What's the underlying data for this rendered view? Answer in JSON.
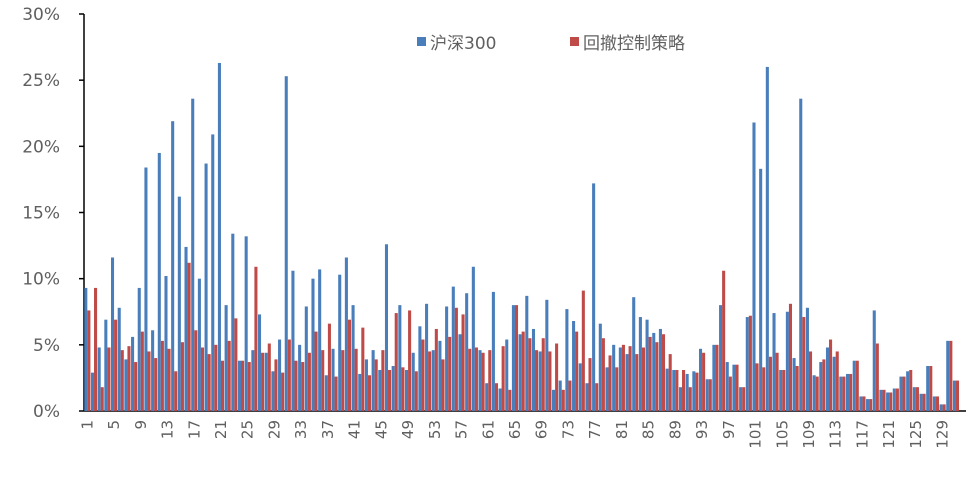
{
  "chart_data": {
    "type": "bar",
    "title": "",
    "xlabel": "",
    "ylabel": "",
    "ylim": [
      0,
      30
    ],
    "y_ticks": [
      "0%",
      "5%",
      "10%",
      "15%",
      "20%",
      "25%",
      "30%"
    ],
    "x_tick_every": 4,
    "legend_position": "top-center",
    "grid": false,
    "categories": [
      1,
      2,
      3,
      4,
      5,
      6,
      7,
      8,
      9,
      10,
      11,
      12,
      13,
      14,
      15,
      16,
      17,
      18,
      19,
      20,
      21,
      22,
      23,
      24,
      25,
      26,
      27,
      28,
      29,
      30,
      31,
      32,
      33,
      34,
      35,
      36,
      37,
      38,
      39,
      40,
      41,
      42,
      43,
      44,
      45,
      46,
      47,
      48,
      49,
      50,
      51,
      52,
      53,
      54,
      55,
      56,
      57,
      58,
      59,
      60,
      61,
      62,
      63,
      64,
      65,
      66,
      67,
      68,
      69,
      70,
      71,
      72,
      73,
      74,
      75,
      76,
      77,
      78,
      79,
      80,
      81,
      82,
      83,
      84,
      85,
      86,
      87,
      88,
      89,
      90,
      91,
      92,
      93,
      94,
      95,
      96,
      97,
      98,
      99,
      100,
      101,
      102,
      103,
      104,
      105,
      106,
      107,
      108,
      109,
      110,
      111,
      112,
      113,
      114,
      115,
      116,
      117,
      118,
      119,
      120,
      121,
      122,
      123,
      124,
      125,
      126,
      127,
      128,
      129,
      130,
      131,
      132
    ],
    "series": [
      {
        "name": "沪深300",
        "color": "#4a7ebb",
        "values": [
          9.3,
          2.9,
          4.8,
          6.9,
          11.6,
          7.8,
          3.9,
          5.6,
          9.3,
          18.4,
          6.1,
          19.5,
          10.2,
          21.9,
          16.2,
          12.4,
          23.6,
          10.0,
          18.7,
          20.9,
          26.3,
          8.0,
          13.4,
          3.8,
          13.2,
          4.6,
          7.3,
          4.4,
          3.0,
          5.4,
          25.3,
          10.6,
          5.0,
          7.9,
          10.0,
          10.7,
          2.7,
          4.7,
          10.3,
          11.6,
          8.0,
          2.8,
          3.9,
          4.6,
          3.1,
          12.6,
          3.4,
          8.0,
          3.1,
          4.4,
          6.4,
          8.1,
          4.6,
          5.3,
          7.9,
          9.4,
          5.8,
          8.9,
          10.9,
          4.6,
          2.1,
          9.0,
          1.7,
          5.4,
          8.0,
          5.8,
          8.7,
          6.2,
          4.5,
          8.4,
          1.6,
          2.3,
          7.7,
          6.8,
          3.6,
          2.1,
          17.2,
          6.6,
          3.3,
          5.0,
          4.8,
          4.3,
          8.6,
          7.1,
          6.9,
          5.9,
          6.2,
          3.2,
          3.1,
          1.8,
          2.8,
          3.0,
          4.7,
          2.4,
          5.0,
          8.0,
          3.7,
          3.5,
          1.8,
          7.1,
          21.8,
          18.3,
          26.0,
          7.4,
          3.1,
          7.5,
          4.0,
          23.6,
          7.8,
          2.7,
          3.7,
          4.8,
          4.1,
          2.6,
          2.8,
          3.8,
          1.1,
          0.9,
          7.6,
          1.6,
          1.4,
          1.7,
          2.6,
          3.0,
          1.8,
          1.3,
          3.4,
          1.1,
          0.5,
          5.3,
          2.3,
          0
        ]
      },
      {
        "name": "回撤控制策略",
        "color": "#be4b48",
        "values": [
          7.6,
          9.3,
          1.8,
          4.8,
          6.9,
          4.6,
          4.9,
          3.7,
          6.0,
          4.5,
          4.0,
          5.3,
          4.7,
          3.0,
          5.2,
          11.2,
          6.1,
          4.8,
          4.3,
          5.0,
          3.8,
          5.3,
          7.0,
          3.8,
          3.7,
          10.9,
          4.4,
          5.1,
          3.9,
          2.9,
          5.4,
          3.8,
          3.7,
          4.4,
          6.0,
          4.6,
          6.6,
          2.6,
          4.6,
          6.9,
          4.7,
          6.3,
          2.7,
          3.9,
          4.6,
          3.1,
          7.4,
          3.3,
          7.6,
          3.0,
          5.4,
          4.5,
          6.2,
          3.9,
          5.6,
          7.8,
          7.3,
          4.7,
          4.8,
          4.4,
          4.6,
          2.1,
          4.9,
          1.6,
          8.0,
          6.0,
          5.5,
          4.6,
          5.5,
          4.5,
          5.1,
          1.6,
          2.3,
          6.0,
          9.1,
          4.0,
          2.1,
          5.5,
          4.2,
          3.3,
          5.0,
          4.9,
          4.3,
          4.8,
          5.6,
          5.2,
          5.8,
          4.3,
          3.1,
          3.1,
          1.8,
          2.9,
          4.4,
          2.4,
          5.0,
          10.6,
          2.6,
          3.5,
          1.8,
          7.2,
          3.6,
          3.3,
          4.1,
          4.4,
          3.1,
          8.1,
          3.4,
          7.1,
          4.5,
          2.6,
          3.9,
          5.4,
          4.5,
          2.6,
          2.8,
          3.8,
          1.1,
          0.9,
          5.1,
          1.6,
          1.4,
          1.7,
          2.6,
          3.1,
          1.8,
          1.3,
          3.4,
          1.1,
          0.5,
          5.3,
          2.3,
          0
        ]
      }
    ]
  }
}
